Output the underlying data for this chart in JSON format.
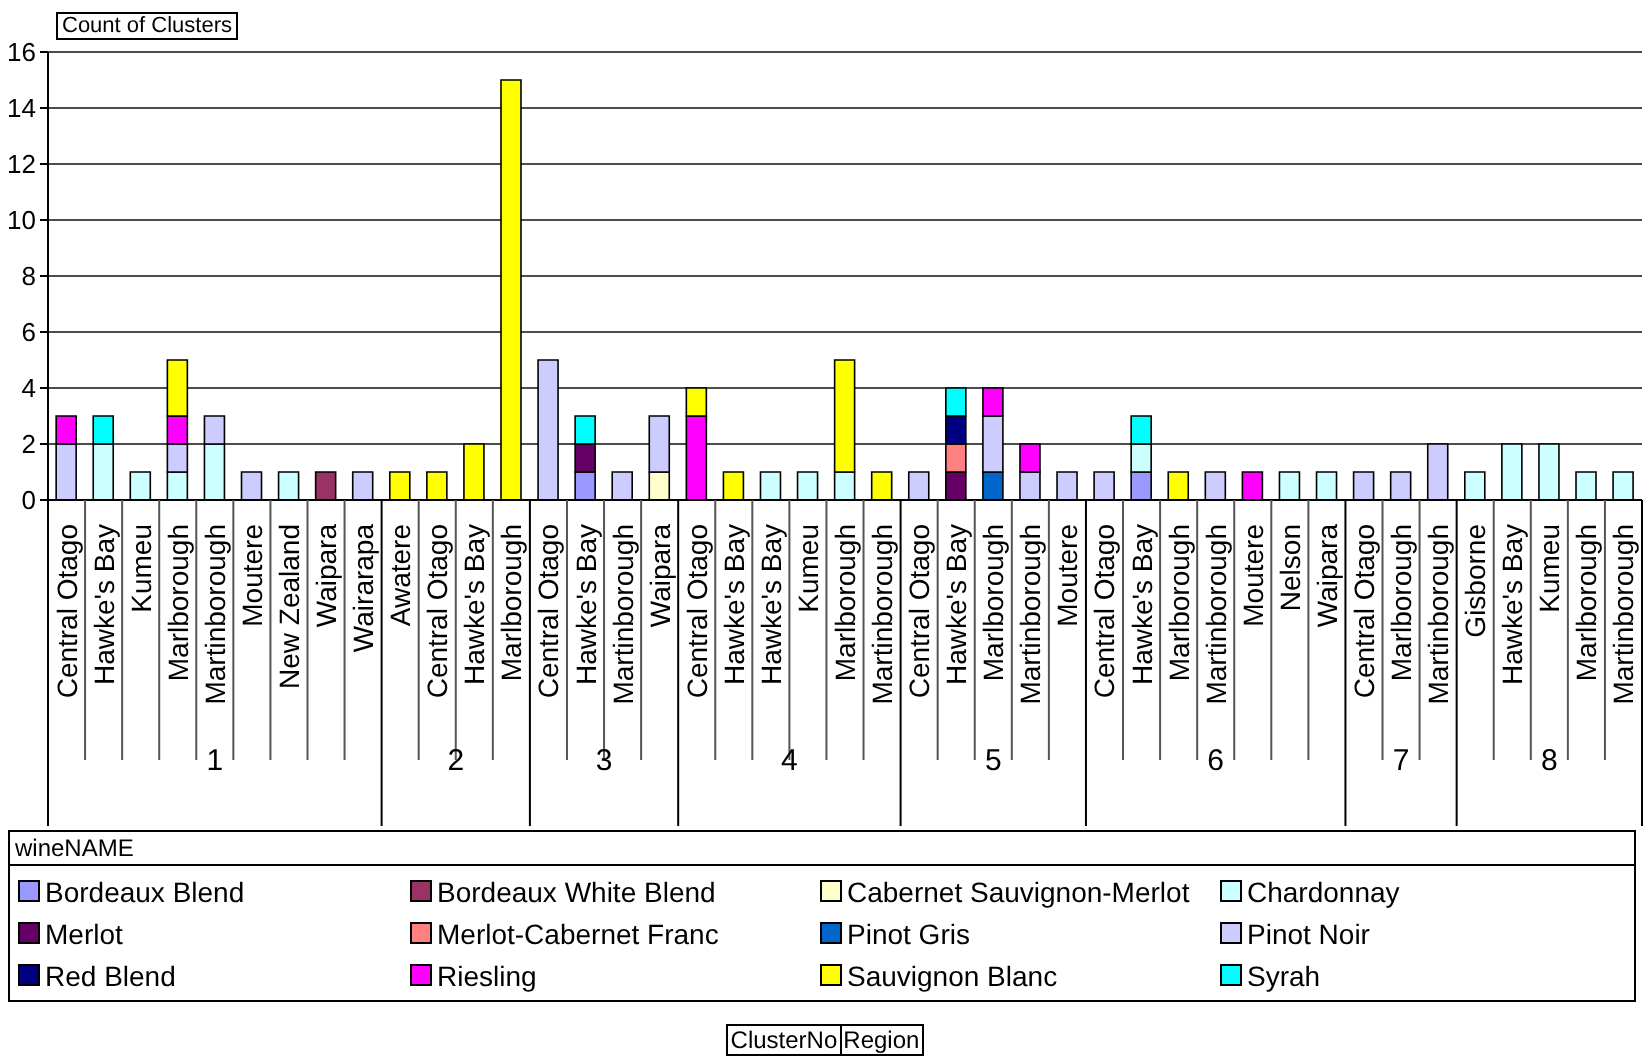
{
  "chart_data": {
    "type": "bar",
    "stacked": true,
    "ylabel": "Count of Clusters",
    "legend_title": "wineNAME",
    "legend": "bottom",
    "grid": "y",
    "ylim": [
      0,
      16
    ],
    "yticks": [
      0,
      2,
      4,
      6,
      8,
      10,
      12,
      14,
      16
    ],
    "annotations": [
      "1",
      "2",
      "3",
      "4",
      "5",
      "6",
      "7",
      "8",
      "ClusterNo",
      "Region"
    ],
    "categories": [
      "Central Otago",
      "Hawke's Bay",
      "Kumeu",
      "Marlborough",
      "Martinborough",
      "Moutere",
      "New Zealand",
      "Waipara",
      "Wairarapa",
      "Awatere",
      "Central Otago",
      "Hawke's Bay",
      "Marlborough",
      "Central Otago",
      "Hawke's Bay",
      "Martinborough",
      "Waipara",
      "Central Otago",
      "Hawke's Bay",
      "Hawke's Bay",
      "Kumeu",
      "Marlborough",
      "Martinborough",
      "Central Otago",
      "Hawke's Bay",
      "Marlborough",
      "Martinborough",
      "Moutere",
      "Central Otago",
      "Hawke's Bay",
      "Marlborough",
      "Martinborough",
      "Moutere",
      "Nelson",
      "Waipara",
      "Central Otago",
      "Marlborough",
      "Martinborough",
      "Gisborne",
      "Hawke's Bay",
      "Kumeu",
      "Marlborough",
      "Martinborough"
    ],
    "series": [
      {
        "name": "Bordeaux Blend",
        "color": "#9999ff",
        "values": [
          null,
          null,
          null,
          null,
          null,
          null,
          null,
          null,
          null,
          null,
          null,
          null,
          null,
          null,
          1,
          null,
          null,
          null,
          null,
          null,
          null,
          null,
          null,
          null,
          null,
          null,
          null,
          null,
          null,
          1,
          null,
          null,
          null,
          null,
          null,
          null,
          null,
          null,
          null,
          null,
          null,
          null,
          null
        ]
      },
      {
        "name": "Bordeaux White Blend",
        "color": "#993366",
        "values": [
          null,
          null,
          null,
          null,
          null,
          null,
          null,
          1,
          null,
          null,
          null,
          null,
          null,
          null,
          null,
          null,
          null,
          null,
          null,
          null,
          null,
          null,
          null,
          null,
          null,
          null,
          null,
          null,
          null,
          null,
          null,
          null,
          null,
          null,
          null,
          null,
          null,
          null,
          null,
          null,
          null,
          null,
          null
        ]
      },
      {
        "name": "Cabernet Sauvignon-Merlot",
        "color": "#ffffcc",
        "values": [
          null,
          null,
          null,
          null,
          null,
          null,
          null,
          null,
          null,
          null,
          null,
          null,
          null,
          null,
          null,
          null,
          1,
          null,
          null,
          null,
          null,
          null,
          null,
          null,
          null,
          null,
          null,
          null,
          null,
          null,
          null,
          null,
          null,
          null,
          null,
          null,
          null,
          null,
          null,
          null,
          null,
          null,
          null
        ]
      },
      {
        "name": "Chardonnay",
        "color": "#ccffff",
        "values": [
          null,
          2,
          1,
          1,
          2,
          null,
          1,
          null,
          null,
          null,
          null,
          null,
          null,
          null,
          null,
          null,
          null,
          null,
          null,
          1,
          1,
          1,
          null,
          null,
          null,
          null,
          null,
          null,
          null,
          1,
          null,
          null,
          null,
          1,
          1,
          null,
          null,
          null,
          1,
          2,
          2,
          1,
          1
        ]
      },
      {
        "name": "Merlot",
        "color": "#660066",
        "values": [
          null,
          null,
          null,
          null,
          null,
          null,
          null,
          null,
          null,
          null,
          null,
          null,
          null,
          null,
          1,
          null,
          null,
          null,
          null,
          null,
          null,
          null,
          null,
          null,
          1,
          null,
          null,
          null,
          null,
          null,
          null,
          null,
          null,
          null,
          null,
          null,
          null,
          null,
          null,
          null,
          null,
          null,
          null
        ]
      },
      {
        "name": "Merlot-Cabernet Franc",
        "color": "#ff8080",
        "values": [
          null,
          null,
          null,
          null,
          null,
          null,
          null,
          null,
          null,
          null,
          null,
          null,
          null,
          null,
          null,
          null,
          null,
          null,
          null,
          null,
          null,
          null,
          null,
          null,
          1,
          null,
          null,
          null,
          null,
          null,
          null,
          null,
          null,
          null,
          null,
          null,
          null,
          null,
          null,
          null,
          null,
          null,
          null
        ]
      },
      {
        "name": "Pinot Gris",
        "color": "#0066cc",
        "values": [
          null,
          null,
          null,
          null,
          null,
          null,
          null,
          null,
          null,
          null,
          null,
          null,
          null,
          null,
          null,
          null,
          null,
          null,
          null,
          null,
          null,
          null,
          null,
          null,
          null,
          1,
          null,
          null,
          null,
          null,
          null,
          null,
          null,
          null,
          null,
          null,
          null,
          null,
          null,
          null,
          null,
          null,
          null
        ]
      },
      {
        "name": "Pinot Noir",
        "color": "#ccccff",
        "values": [
          2,
          null,
          null,
          1,
          1,
          1,
          null,
          null,
          1,
          null,
          null,
          null,
          null,
          5,
          null,
          1,
          2,
          null,
          null,
          null,
          null,
          null,
          null,
          1,
          null,
          2,
          1,
          1,
          1,
          null,
          null,
          1,
          null,
          null,
          null,
          1,
          1,
          2,
          null,
          null,
          null,
          null,
          null
        ]
      },
      {
        "name": "Red Blend",
        "color": "#000080",
        "values": [
          null,
          null,
          null,
          null,
          null,
          null,
          null,
          null,
          null,
          null,
          null,
          null,
          null,
          null,
          null,
          null,
          null,
          null,
          null,
          null,
          null,
          null,
          null,
          null,
          1,
          null,
          null,
          null,
          null,
          null,
          null,
          null,
          null,
          null,
          null,
          null,
          null,
          null,
          null,
          null,
          null,
          null,
          null
        ]
      },
      {
        "name": "Riesling",
        "color": "#ff00ff",
        "values": [
          1,
          null,
          null,
          1,
          null,
          null,
          null,
          null,
          null,
          null,
          null,
          null,
          null,
          null,
          null,
          null,
          null,
          3,
          null,
          null,
          null,
          null,
          null,
          null,
          null,
          1,
          1,
          null,
          null,
          null,
          null,
          null,
          1,
          null,
          null,
          null,
          null,
          null,
          null,
          null,
          null,
          null,
          null
        ]
      },
      {
        "name": "Sauvignon Blanc",
        "color": "#ffff00",
        "values": [
          null,
          null,
          null,
          2,
          null,
          null,
          null,
          null,
          null,
          1,
          1,
          2,
          15,
          null,
          null,
          null,
          null,
          1,
          1,
          null,
          null,
          4,
          1,
          null,
          null,
          null,
          null,
          null,
          null,
          null,
          1,
          null,
          null,
          null,
          null,
          null,
          null,
          null,
          null,
          null,
          null,
          null,
          null
        ]
      },
      {
        "name": "Syrah",
        "color": "#00ffff",
        "values": [
          null,
          1,
          null,
          null,
          null,
          null,
          null,
          null,
          null,
          null,
          null,
          null,
          null,
          null,
          1,
          null,
          null,
          null,
          null,
          null,
          null,
          null,
          null,
          null,
          1,
          null,
          null,
          null,
          null,
          1,
          null,
          null,
          null,
          null,
          null,
          null,
          null,
          null,
          null,
          null,
          null,
          null,
          null
        ]
      }
    ]
  }
}
